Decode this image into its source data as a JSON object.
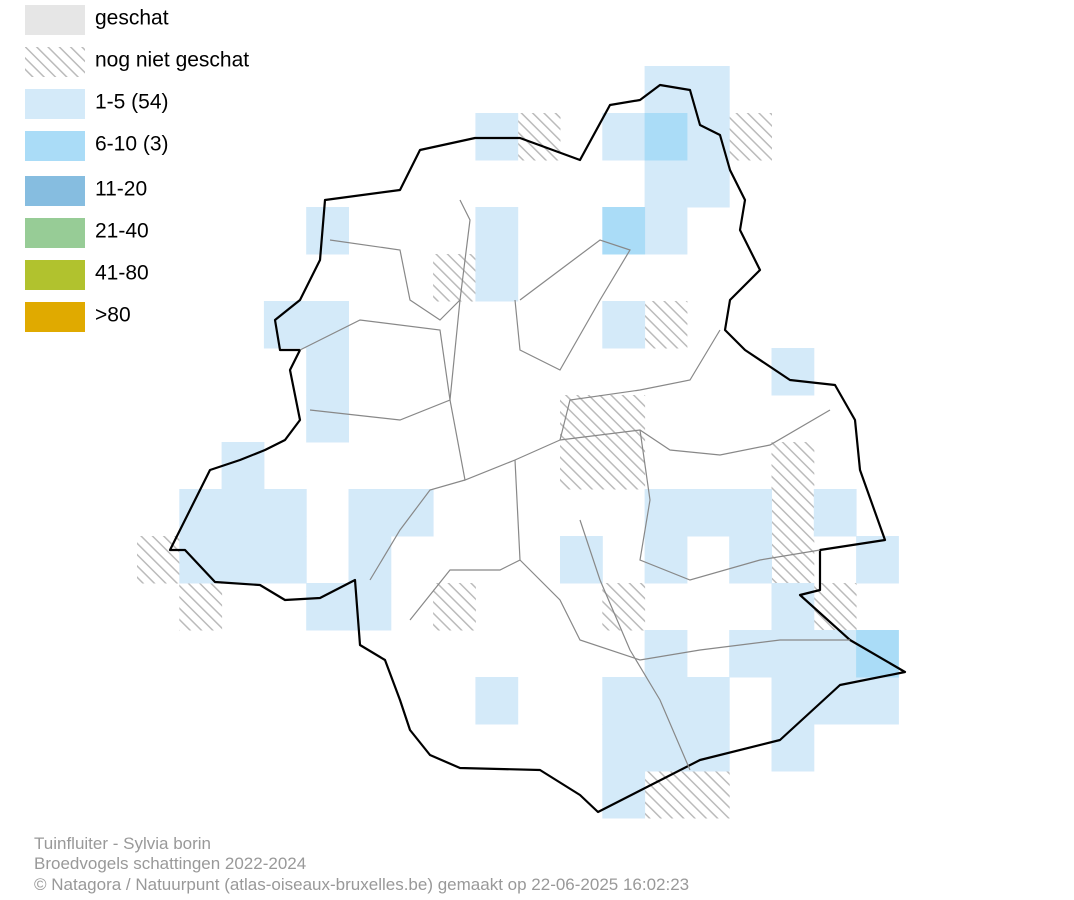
{
  "legend": [
    "geschat",
    "nog niet geschat",
    "1-5 (54)",
    "6-10 (3)",
    "11-20",
    "21-40",
    "41-80",
    ">80"
  ],
  "footer": [
    "Tuinfluiter - Sylvia borin",
    "Broedvogels schattingen 2022-2024",
    "© Natagora / Natuurpunt (atlas-oiseaux-bruxelles.be) gemaakt op 22-06-2025 16:02:23"
  ]
}
